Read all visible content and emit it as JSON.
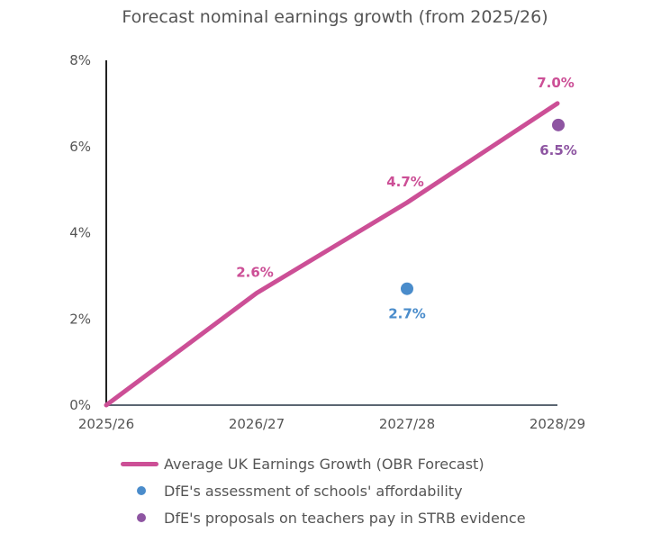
{
  "chart_data": {
    "type": "line",
    "title": "Forecast nominal earnings growth (from 2025/26)",
    "xlabel": "",
    "ylabel": "",
    "categories": [
      "2025/26",
      "2026/27",
      "2027/28",
      "2028/29"
    ],
    "ylim": [
      0,
      8
    ],
    "yticks": [
      0,
      2,
      4,
      6,
      8
    ],
    "ytick_labels": [
      "0%",
      "2%",
      "4%",
      "6%",
      "8%"
    ],
    "grid": false,
    "legend_position": "bottom",
    "series": [
      {
        "name": "Average UK Earnings Growth (OBR Forecast)",
        "kind": "line",
        "color": "#cc4f96",
        "values": [
          0,
          2.6,
          4.7,
          7.0
        ],
        "labels": [
          null,
          "2.6%",
          "4.7%",
          "7.0%"
        ]
      },
      {
        "name": "DfE's assessment of schools' affordability",
        "kind": "point",
        "color": "#4a8ccb",
        "points": [
          {
            "category": "2027/28",
            "value": 2.7,
            "label": "2.7%"
          }
        ]
      },
      {
        "name": "DfE's proposals on teachers pay in STRB evidence",
        "kind": "point",
        "color": "#8e55a2",
        "points": [
          {
            "category": "2028/29",
            "value": 6.5,
            "label": "6.5%"
          }
        ]
      }
    ]
  }
}
